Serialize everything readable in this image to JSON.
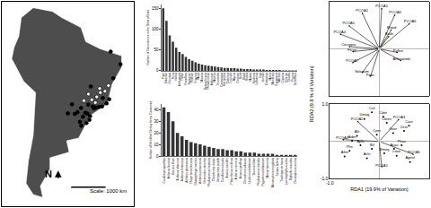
{
  "map": {
    "north_label": "N",
    "scale_label": "Scale: 1000 km",
    "xlim": [
      -85,
      -30
    ],
    "ylim": [
      -58,
      14
    ],
    "coastline": {
      "lon": [
        -77,
        -72,
        -64,
        -60,
        -52,
        -50,
        -44,
        -35,
        -35,
        -39,
        -41,
        -48,
        -53,
        -58,
        -57,
        -65,
        -65,
        -69,
        -68,
        -72,
        -75,
        -74,
        -72,
        -71,
        -76,
        -81,
        -80,
        -78,
        -77
      ],
      "lat": [
        8.5,
        12,
        10.7,
        8.5,
        5,
        0,
        -2.5,
        -5,
        -9,
        -15,
        -22,
        -26,
        -34,
        -35,
        -39,
        -41,
        -45,
        -51,
        -55,
        -54,
        -50,
        -42,
        -33,
        -18,
        -14,
        -6,
        -2,
        2,
        8.5
      ]
    },
    "points": [
      {
        "color": "#000000",
        "lon": [
          -35.5,
          -38.5,
          -40.2,
          -43.2,
          -44.5,
          -46.6,
          -47.1,
          -48.5,
          -49.3,
          -50.2,
          -51.2,
          -52.0,
          -53.5,
          -54.6,
          -49.0,
          -47.9,
          -45.9,
          -42.9,
          -41.3,
          -51.9,
          -52.5,
          -49.7,
          -48.2,
          -55.8,
          -57.5,
          -39.6
        ],
        "lat": [
          -8.0,
          -12.9,
          -20.3,
          -22.9,
          -23.0,
          -23.5,
          -22.9,
          -27.6,
          -25.4,
          -25.1,
          -26.5,
          -23.4,
          -24.9,
          -25.5,
          -22.2,
          -15.8,
          -23.2,
          -19.9,
          -21.8,
          -29.7,
          -28.3,
          -28.7,
          -26.3,
          -22.1,
          -25.3,
          -3.5
        ]
      },
      {
        "color": "#ffffff",
        "lon": [
          -43.9,
          -45.4,
          -46.0,
          -47.5,
          -44.2,
          -42.0,
          -40.5,
          -48.9,
          -50.8
        ],
        "lat": [
          -18.0,
          -19.5,
          -21.5,
          -20.5,
          -16.5,
          -17.5,
          -15.5,
          -18.5,
          -20.8
        ]
      }
    ]
  },
  "chart_data": [
    {
      "type": "bar",
      "y_label": "Number of Occurrences in the Diets of Bats",
      "color": "#333333",
      "categories": [
        "Piper",
        "Solanum",
        "Cecropia",
        "Ficus",
        "Vismia",
        "Arthropods",
        "Pollen",
        "Passiflora",
        "Syzygium",
        "Psidium",
        "Eugenia",
        "Musa",
        "Miconia",
        "Dyssochroma",
        "Philodendron",
        "Anthurium",
        "Markea",
        "Terminalia",
        "Coussapoa",
        "Hieronyma",
        "Clidemia",
        "Leandra",
        "Myrcia",
        "Cestrum",
        "Birds",
        "Blood",
        "Rubus",
        "Mabea",
        "Bauhinia",
        "Lafoensia",
        "Inga",
        "Vriesea",
        "Eriobotrya",
        "Morus",
        "Manilkara",
        "Cayaponia",
        "Maclura",
        "Cupania",
        "Euterpe",
        "Ocotea",
        "Prunus",
        "Schefflera"
      ],
      "values": [
        150,
        120,
        85,
        70,
        55,
        45,
        40,
        33,
        28,
        24,
        20,
        17,
        15,
        13,
        12,
        11,
        10,
        9,
        8,
        7,
        7,
        6,
        6,
        5,
        5,
        4,
        4,
        4,
        3,
        3,
        3,
        3,
        2,
        2,
        2,
        2,
        2,
        1,
        1,
        1,
        1,
        1
      ],
      "ylim": [
        0,
        160
      ],
      "yticks": [
        0,
        50,
        100,
        150
      ],
      "grid": false
    },
    {
      "type": "bar",
      "y_label": "Number of Identified Dietary Items Consumed",
      "color": "#333333",
      "categories": [
        "Carollia perspicillata",
        "Artibeus lituratus",
        "Sturnira lilium",
        "Artibeus obscurus",
        "Artibeus fimbriatus",
        "Artibeus planirostris",
        "Platyrrhinus lineatus",
        "Glossophaga soricina",
        "Artibeus jamaicensis",
        "Desmodus rotundus",
        "Phyllostomus hastatus",
        "Chiroderma doriae",
        "Vampyressa pusilla",
        "Carollia brevicauda",
        "Anoura caudifer",
        "Platyrrhinus recifinus",
        "Artibeus cinereus",
        "Anoura geoffroyi",
        "Chiroderma villosum",
        "Uroderma bilobatum",
        "Sturnira tildae",
        "Phyllostomus discolor",
        "Pygoderma bilabiatum",
        "Mimon bennettii",
        "Micronycteris megalotis",
        "Tonatia bidens",
        "Trachops cirrhosus",
        "Lonchophylla mordax",
        "Diphylla ecaudata",
        "Chrotopterus auritus"
      ],
      "values": [
        42,
        38,
        30,
        20,
        17,
        14,
        12,
        11,
        10,
        9,
        8,
        7,
        6,
        6,
        5,
        5,
        4,
        4,
        3,
        3,
        3,
        2,
        2,
        2,
        2,
        1,
        1,
        1,
        1,
        1
      ],
      "ylim": [
        0,
        45
      ],
      "yticks": [
        0,
        10,
        20,
        30,
        40
      ],
      "grid": false
    },
    {
      "type": "biplot",
      "y_label": "RDA2 (9.8 % of Variation)",
      "color": "#000000",
      "xlim": [
        -1,
        1
      ],
      "ylim": [
        -1,
        1
      ],
      "tick_labels": false,
      "grid": false,
      "vectors": [
        {
          "label": "PCOA1",
          "x": 0.05,
          "y": 0.88
        },
        {
          "label": "PCOA2",
          "x": -0.35,
          "y": 0.78
        },
        {
          "label": "PCOA3",
          "x": 0.32,
          "y": 0.74
        },
        {
          "label": "PCOA4",
          "x": -0.8,
          "y": 0.32
        },
        {
          "label": "PCOA5",
          "x": -0.62,
          "y": 0.5
        },
        {
          "label": "PCOA6",
          "x": 0.62,
          "y": 0.55
        },
        {
          "label": "PCOA7",
          "x": -0.55,
          "y": -0.3
        },
        {
          "label": "Blood",
          "x": 0.25,
          "y": 0.42
        },
        {
          "label": "Birds",
          "x": 0.2,
          "y": 0.28
        },
        {
          "label": "Pollen",
          "x": 0.38,
          "y": -0.08
        },
        {
          "label": "Arthropods",
          "x": 0.45,
          "y": -0.26
        },
        {
          "label": "Cecropia",
          "x": -0.62,
          "y": 0.05
        },
        {
          "label": "Ficus",
          "x": -0.55,
          "y": -0.06
        },
        {
          "label": "Solanum",
          "x": -0.35,
          "y": -0.52
        },
        {
          "label": "Piper",
          "x": -0.18,
          "y": -0.6
        }
      ]
    },
    {
      "type": "biplot",
      "x_label": "RDA1 (19.9% of Variation)",
      "color": "#000000",
      "xlim": [
        -1,
        1
      ],
      "ylim": [
        -1,
        1
      ],
      "grid": false,
      "xticks": [
        {
          "value": -1,
          "label": "-1.0"
        },
        {
          "value": 1,
          "label": "1.0"
        }
      ],
      "yticks": [
        {
          "value": -1,
          "label": "-1.0"
        },
        {
          "value": 1,
          "label": "1.0"
        }
      ],
      "vectors": [
        {
          "label": "PCOA1",
          "x": 0.05,
          "y": -0.7
        },
        {
          "label": "PCOA2",
          "x": -0.45,
          "y": 0.55
        },
        {
          "label": "PCOA3",
          "x": 0.4,
          "y": 0.6
        },
        {
          "label": "PCOA4",
          "x": -0.75,
          "y": 0.05
        },
        {
          "label": "PCOA5",
          "x": 0.7,
          "y": -0.35
        }
      ],
      "points": [
        {
          "label": "Cvil",
          "x": -0.15,
          "y": 0.78
        },
        {
          "label": "Cdor",
          "x": 0.08,
          "y": 0.66
        },
        {
          "label": "Umag",
          "x": -0.3,
          "y": 0.6
        },
        {
          "label": "Cbrev",
          "x": 0.15,
          "y": 0.5
        },
        {
          "label": "Caur",
          "x": 0.6,
          "y": 0.42
        },
        {
          "label": "Drot",
          "x": 0.5,
          "y": 0.28
        },
        {
          "label": "Gsor",
          "x": 0.28,
          "y": 0.22
        },
        {
          "label": "Cper",
          "x": -0.05,
          "y": 0.18
        },
        {
          "label": "Alit",
          "x": -0.45,
          "y": 0.15
        },
        {
          "label": "Aobs",
          "x": -0.55,
          "y": 0.02
        },
        {
          "label": "Apla",
          "x": -0.38,
          "y": -0.1
        },
        {
          "label": "Slil",
          "x": -0.15,
          "y": -0.2
        },
        {
          "label": "Plin",
          "x": -0.6,
          "y": -0.25
        },
        {
          "label": "Afim",
          "x": -0.7,
          "y": -0.4
        },
        {
          "label": "Acau",
          "x": 0.3,
          "y": -0.2
        },
        {
          "label": "Phas",
          "x": 0.45,
          "y": -0.1
        },
        {
          "label": "Ageof",
          "x": 0.62,
          "y": -0.55
        },
        {
          "label": "Lmor",
          "x": 0.35,
          "y": -0.38
        },
        {
          "label": "Mmeg",
          "x": 0.1,
          "y": -0.32
        },
        {
          "label": "Achi",
          "x": -0.25,
          "y": -0.45
        }
      ]
    }
  ]
}
